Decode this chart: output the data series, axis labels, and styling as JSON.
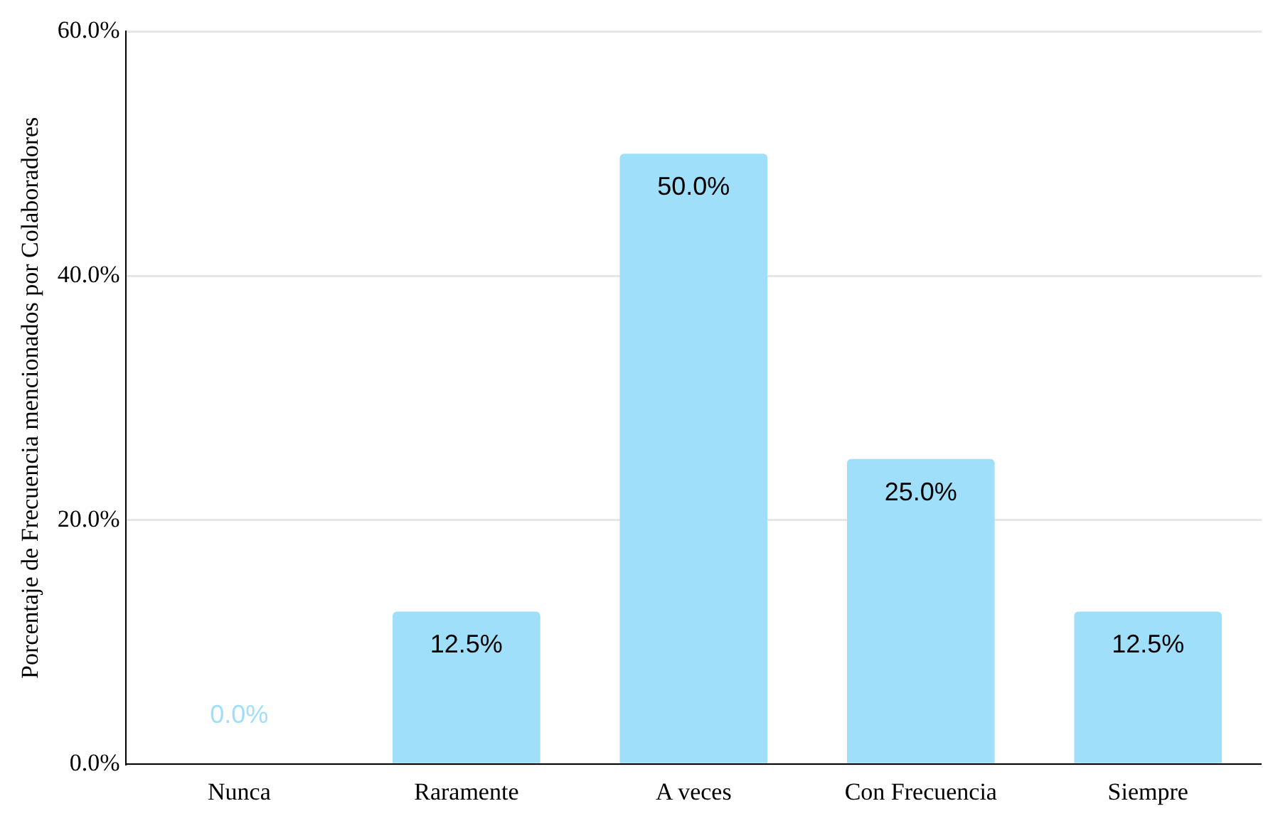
{
  "chart_data": {
    "type": "bar",
    "ylabel": "Porcentaje de Frecuencia mencionados por Colaboradores",
    "categories": [
      "Nunca",
      "Raramente",
      "A veces",
      "Con Frecuencia",
      "Siempre"
    ],
    "values": [
      0,
      12.5,
      50,
      25,
      12.5
    ],
    "value_labels": [
      "0.0%",
      "12.5%",
      "50.0%",
      "25.0%",
      "12.5%"
    ],
    "color": "#a0dffa",
    "ylim": [
      0,
      60
    ],
    "yticks": [
      {
        "value": 0,
        "label": "0.0%"
      },
      {
        "value": 20,
        "label": "20.0%"
      },
      {
        "value": 40,
        "label": "40.0%"
      },
      {
        "value": 60,
        "label": "60.0%"
      }
    ],
    "grid": "y",
    "legend": false
  }
}
